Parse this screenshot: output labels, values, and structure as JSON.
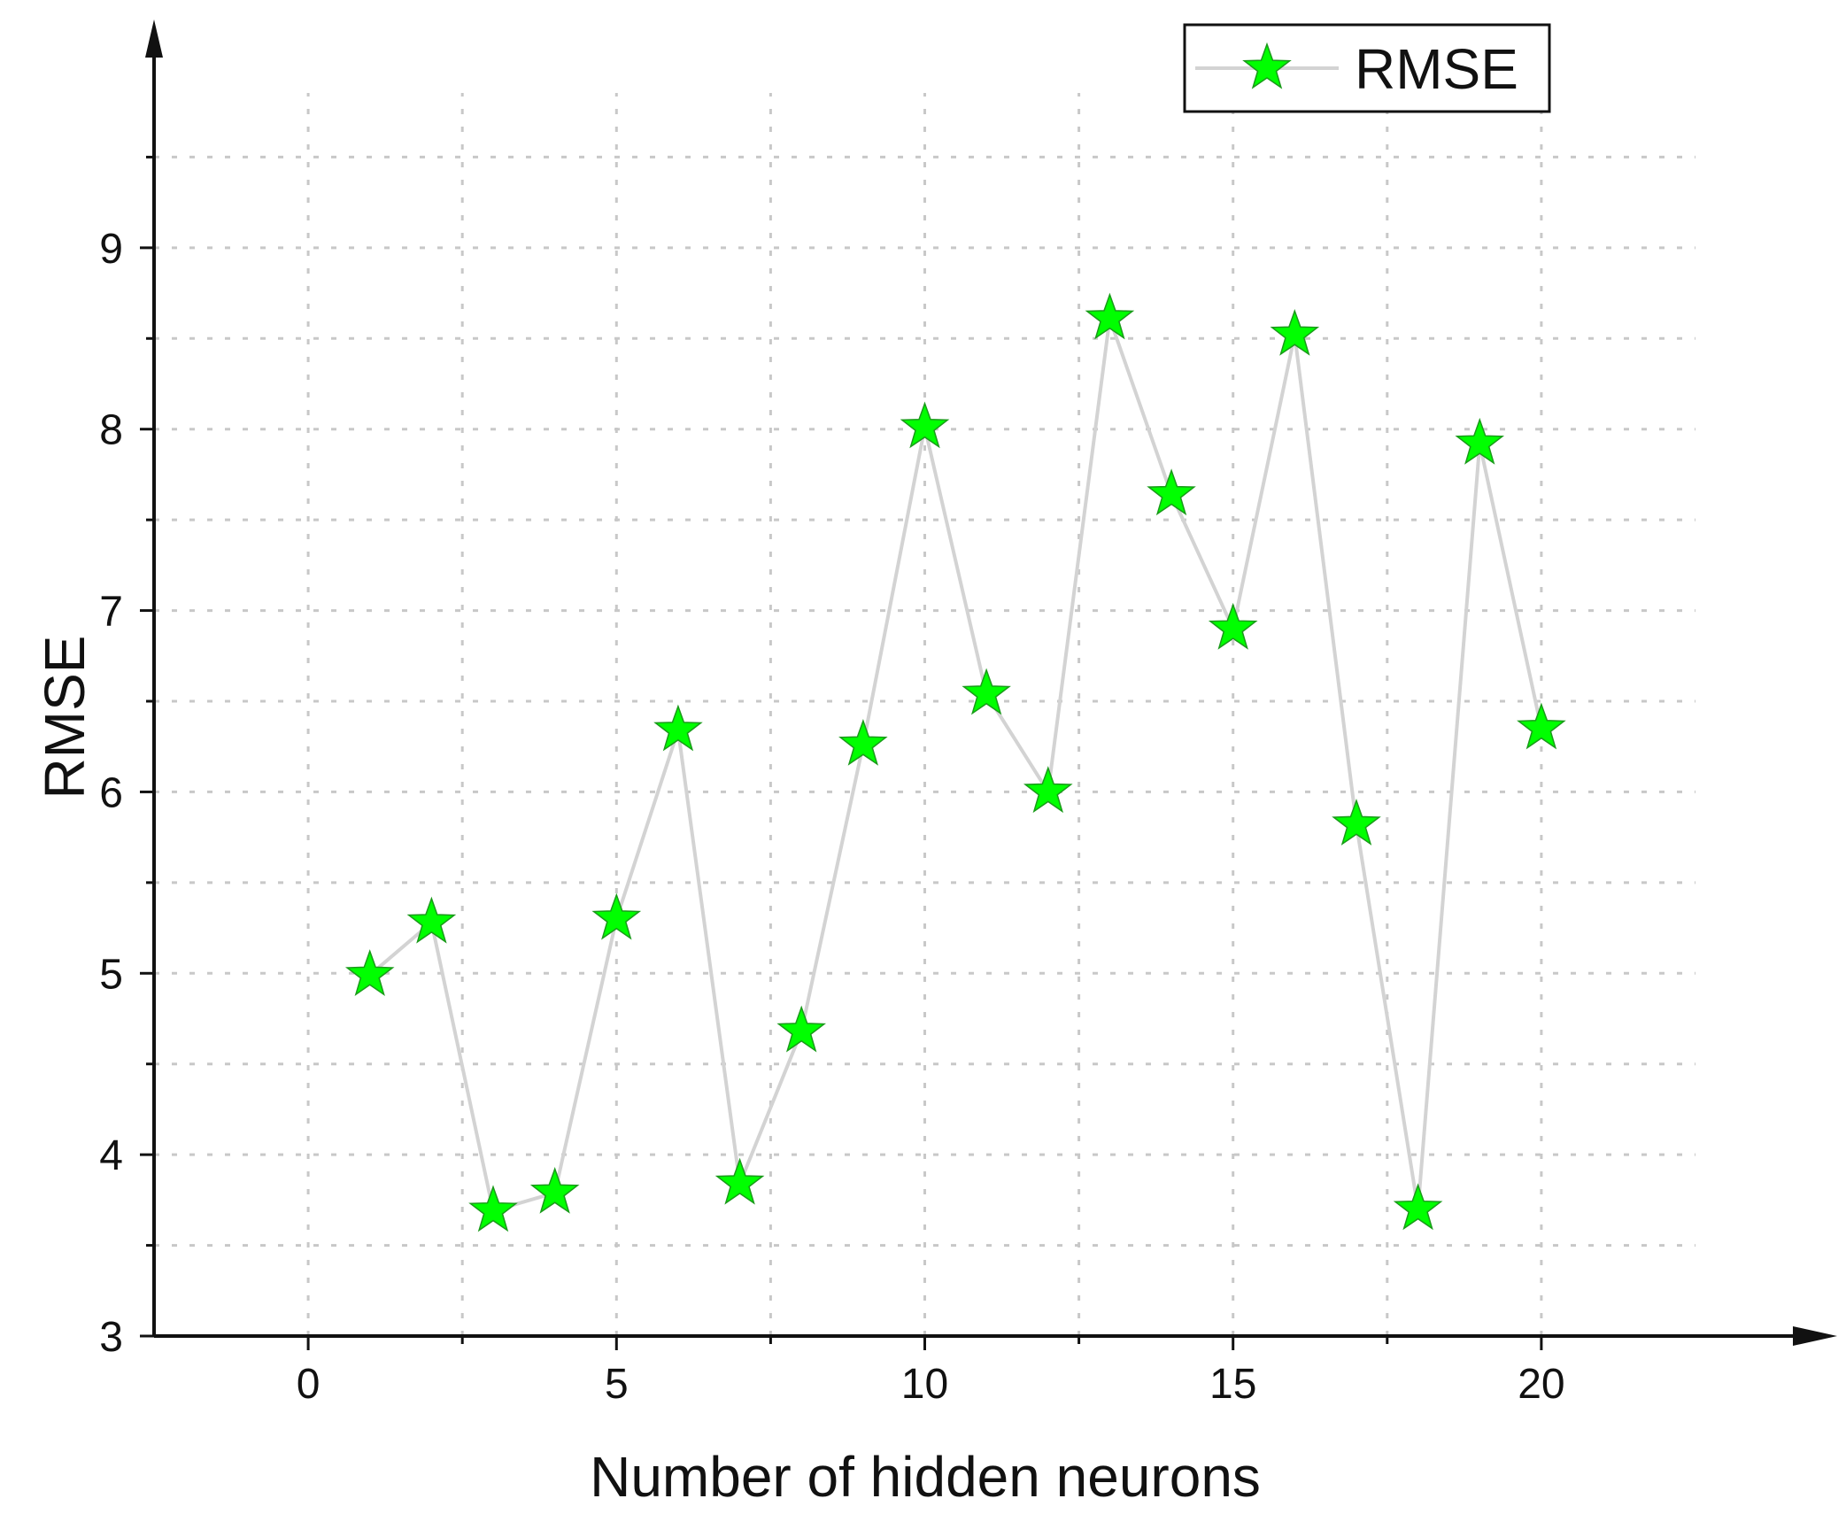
{
  "chart_data": {
    "type": "line",
    "xlabel": "Number of hidden neurons",
    "ylabel": "RMSE",
    "xlim": [
      -2.5,
      22.5
    ],
    "ylim": [
      3,
      10
    ],
    "x_ticks": [
      0,
      5,
      10,
      15,
      20
    ],
    "y_ticks": [
      3,
      4,
      5,
      6,
      7,
      8,
      9
    ],
    "grid": true,
    "legend_position": "top-right",
    "series": [
      {
        "name": "RMSE",
        "line_color": "#d3d3d3",
        "marker": "star",
        "marker_color": "#00ff00",
        "x": [
          1,
          2,
          3,
          4,
          5,
          6,
          7,
          8,
          9,
          10,
          11,
          12,
          13,
          14,
          15,
          16,
          17,
          18,
          19,
          20
        ],
        "y": [
          4.99,
          5.28,
          3.69,
          3.79,
          5.3,
          6.34,
          3.84,
          4.68,
          6.26,
          8.01,
          6.54,
          6.0,
          8.61,
          7.64,
          6.9,
          8.52,
          5.82,
          3.7,
          7.92,
          6.35
        ]
      }
    ]
  }
}
